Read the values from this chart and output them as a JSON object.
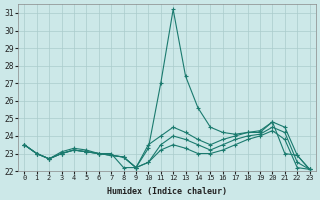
{
  "xlabel": "Humidex (Indice chaleur)",
  "x_values": [
    0,
    1,
    2,
    3,
    4,
    5,
    6,
    7,
    8,
    9,
    10,
    11,
    12,
    13,
    14,
    15,
    16,
    17,
    18,
    19,
    20,
    21,
    22,
    23
  ],
  "lines": [
    [
      23.5,
      23.0,
      22.7,
      23.0,
      23.2,
      23.1,
      23.0,
      23.0,
      22.2,
      22.2,
      23.3,
      27.0,
      31.2,
      27.4,
      25.6,
      24.5,
      24.2,
      24.1,
      24.2,
      24.2,
      24.8,
      23.0,
      22.9,
      22.1
    ],
    [
      23.5,
      23.0,
      22.7,
      23.0,
      23.2,
      23.1,
      23.0,
      22.9,
      22.8,
      22.2,
      22.5,
      23.2,
      23.5,
      23.3,
      23.0,
      23.0,
      23.2,
      23.5,
      23.8,
      24.0,
      24.3,
      23.8,
      22.2,
      22.1
    ],
    [
      23.5,
      23.0,
      22.7,
      23.1,
      23.3,
      23.2,
      23.0,
      22.9,
      22.8,
      22.2,
      23.5,
      24.0,
      24.5,
      24.2,
      23.8,
      23.5,
      23.8,
      24.0,
      24.2,
      24.3,
      24.8,
      24.5,
      22.9,
      22.1
    ],
    [
      23.5,
      23.0,
      22.7,
      23.0,
      23.2,
      23.1,
      23.0,
      22.9,
      22.8,
      22.2,
      22.5,
      23.5,
      24.0,
      23.8,
      23.5,
      23.2,
      23.5,
      23.8,
      24.0,
      24.1,
      24.5,
      24.2,
      22.5,
      22.1
    ]
  ],
  "line_color": "#1a7a6e",
  "bg_color": "#cce8e8",
  "grid_color": "#aacccc",
  "ylim": [
    22,
    31.5
  ],
  "yticks": [
    22,
    23,
    24,
    25,
    26,
    27,
    28,
    29,
    30,
    31
  ],
  "xticks": [
    0,
    1,
    2,
    3,
    4,
    5,
    6,
    7,
    8,
    9,
    10,
    11,
    12,
    13,
    14,
    15,
    16,
    17,
    18,
    19,
    20,
    21,
    22,
    23
  ],
  "xlabel_fontsize": 6,
  "tick_fontsize": 5
}
